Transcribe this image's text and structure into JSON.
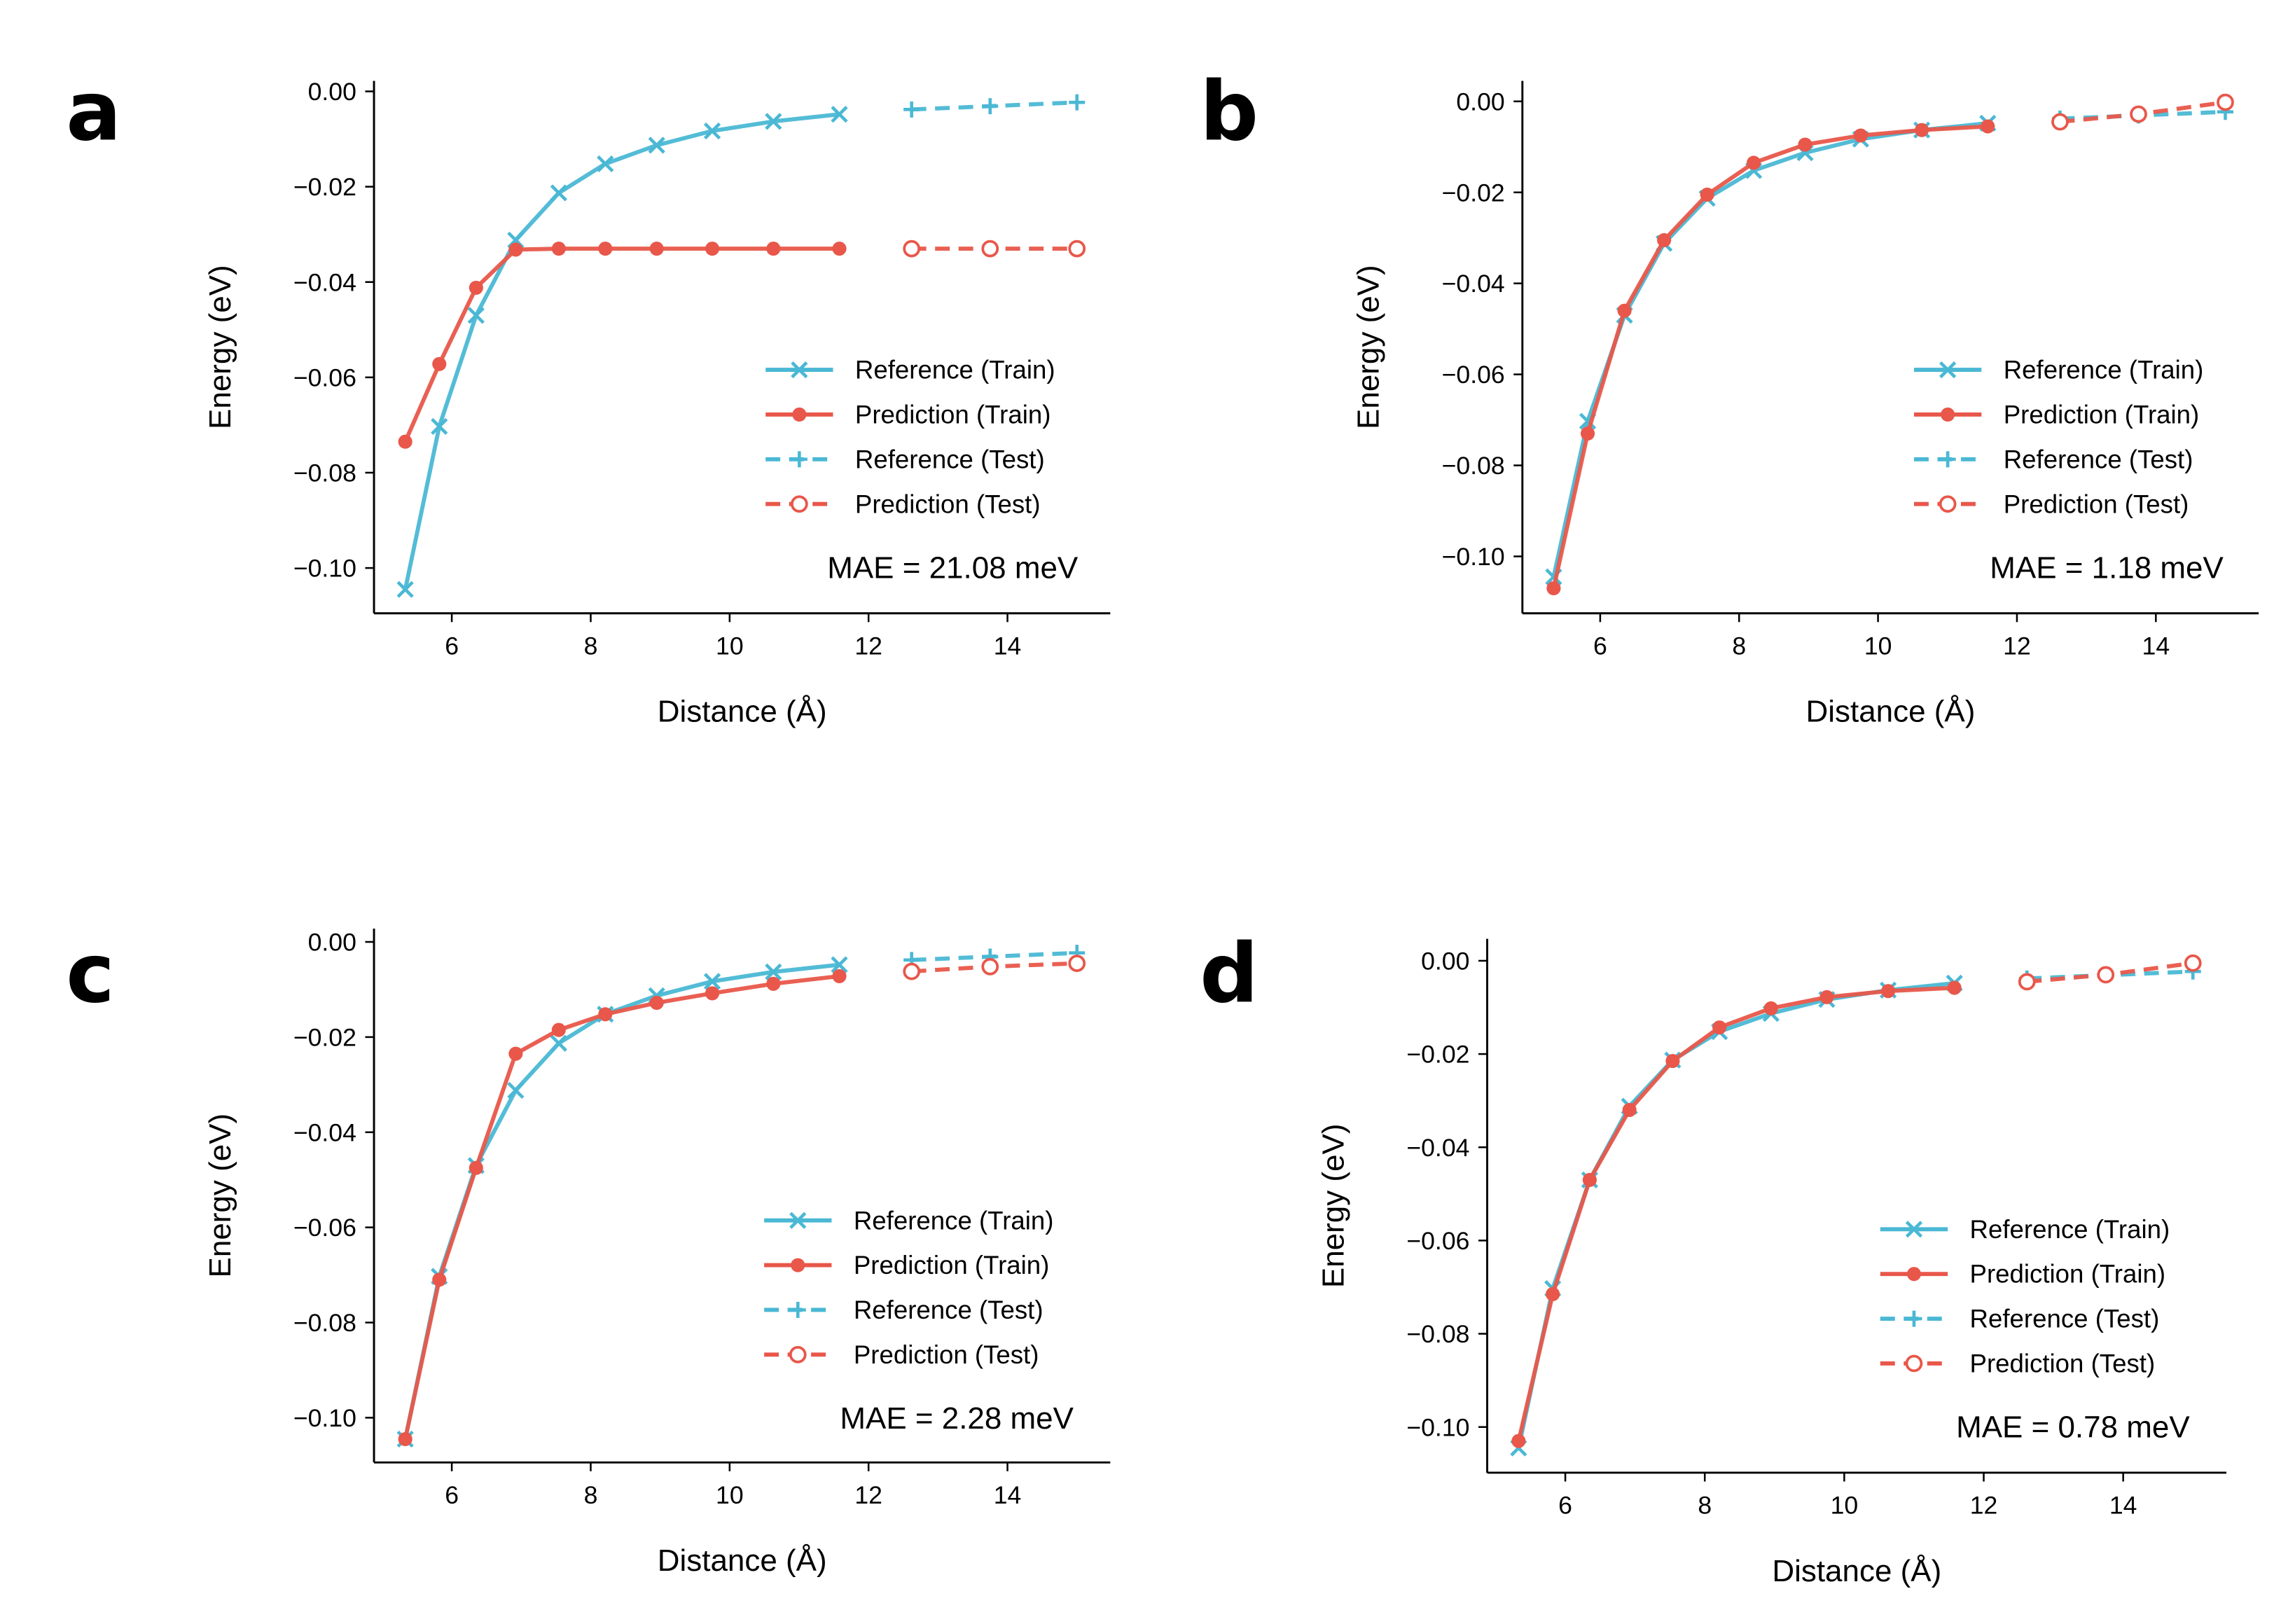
{
  "chart_data": [
    {
      "panel_label": "a",
      "type": "line",
      "xlabel": "Distance (Å)",
      "ylabel": "Energy (eV)",
      "xlim": [
        4.88,
        15.48
      ],
      "ylim": [
        -0.1095,
        0.0022
      ],
      "xticks": [
        6,
        8,
        10,
        12,
        14
      ],
      "yticks": [
        0.0,
        -0.02,
        -0.04,
        -0.06,
        -0.08,
        -0.1
      ],
      "annotation": "MAE = 21.08 meV",
      "legend_position": "lower-right",
      "series": [
        {
          "name": "Reference (Train)",
          "color": "#4ab8d4",
          "marker": "x",
          "dash": false,
          "x": [
            5.33,
            5.82,
            6.35,
            6.92,
            7.54,
            8.21,
            8.95,
            9.75,
            10.63,
            11.58
          ],
          "y": [
            -0.1045,
            -0.0703,
            -0.047,
            -0.0312,
            -0.0213,
            -0.0152,
            -0.0113,
            -0.0083,
            -0.0063,
            -0.0048
          ]
        },
        {
          "name": "Prediction (Train)",
          "color": "#e8574a",
          "marker": "o",
          "dash": false,
          "x": [
            5.33,
            5.82,
            6.35,
            6.92,
            7.54,
            8.21,
            8.95,
            9.75,
            10.63,
            11.58
          ],
          "y": [
            -0.0735,
            -0.0572,
            -0.0412,
            -0.0332,
            -0.033,
            -0.033,
            -0.033,
            -0.033,
            -0.033,
            -0.033
          ]
        },
        {
          "name": "Reference (Test)",
          "color": "#4ab8d4",
          "marker": "+",
          "dash": true,
          "x": [
            12.62,
            13.75,
            15.0
          ],
          "y": [
            -0.0038,
            -0.0031,
            -0.0023
          ]
        },
        {
          "name": "Prediction (Test)",
          "color": "#e8574a",
          "marker": "open-circle",
          "dash": true,
          "x": [
            12.62,
            13.75,
            15.0
          ],
          "y": [
            -0.033,
            -0.033,
            -0.033
          ]
        }
      ]
    },
    {
      "panel_label": "b",
      "type": "line",
      "xlabel": "Distance (Å)",
      "ylabel": "Energy (eV)",
      "xlim": [
        4.88,
        15.48
      ],
      "ylim": [
        -0.1125,
        0.0045
      ],
      "xticks": [
        6,
        8,
        10,
        12,
        14
      ],
      "yticks": [
        0.0,
        -0.02,
        -0.04,
        -0.06,
        -0.08,
        -0.1
      ],
      "annotation": "MAE = 1.18 meV",
      "legend_position": "lower-right",
      "series": [
        {
          "name": "Reference (Train)",
          "color": "#4ab8d4",
          "marker": "x",
          "dash": false,
          "x": [
            5.33,
            5.82,
            6.35,
            6.92,
            7.54,
            8.21,
            8.95,
            9.75,
            10.63,
            11.58
          ],
          "y": [
            -0.1045,
            -0.0703,
            -0.047,
            -0.0312,
            -0.0213,
            -0.0152,
            -0.0113,
            -0.0083,
            -0.0063,
            -0.0048
          ]
        },
        {
          "name": "Prediction (Train)",
          "color": "#e8574a",
          "marker": "o",
          "dash": false,
          "x": [
            5.33,
            5.82,
            6.35,
            6.92,
            7.54,
            8.21,
            8.95,
            9.75,
            10.63,
            11.58
          ],
          "y": [
            -0.107,
            -0.073,
            -0.046,
            -0.0305,
            -0.0205,
            -0.0135,
            -0.0095,
            -0.0075,
            -0.0063,
            -0.0055
          ]
        },
        {
          "name": "Reference (Test)",
          "color": "#4ab8d4",
          "marker": "+",
          "dash": true,
          "x": [
            12.62,
            13.75,
            15.0
          ],
          "y": [
            -0.0038,
            -0.0031,
            -0.0023
          ]
        },
        {
          "name": "Prediction (Test)",
          "color": "#e8574a",
          "marker": "open-circle",
          "dash": true,
          "x": [
            12.62,
            13.75,
            15.0
          ],
          "y": [
            -0.0045,
            -0.0028,
            -0.0002
          ]
        }
      ]
    },
    {
      "panel_label": "c",
      "type": "line",
      "xlabel": "Distance (Å)",
      "ylabel": "Energy (eV)",
      "xlim": [
        4.88,
        15.48
      ],
      "ylim": [
        -0.1094,
        0.0028
      ],
      "xticks": [
        6,
        8,
        10,
        12,
        14
      ],
      "yticks": [
        0.0,
        -0.02,
        -0.04,
        -0.06,
        -0.08,
        -0.1
      ],
      "annotation": "MAE = 2.28 meV",
      "legend_position": "lower-right",
      "series": [
        {
          "name": "Reference (Train)",
          "color": "#4ab8d4",
          "marker": "x",
          "dash": false,
          "x": [
            5.33,
            5.82,
            6.35,
            6.92,
            7.54,
            8.21,
            8.95,
            9.75,
            10.63,
            11.58
          ],
          "y": [
            -0.1045,
            -0.0703,
            -0.047,
            -0.0312,
            -0.0213,
            -0.0152,
            -0.0113,
            -0.0083,
            -0.0063,
            -0.0048
          ]
        },
        {
          "name": "Prediction (Train)",
          "color": "#e8574a",
          "marker": "o",
          "dash": false,
          "x": [
            5.33,
            5.82,
            6.35,
            6.92,
            7.54,
            8.21,
            8.95,
            9.75,
            10.63,
            11.58
          ],
          "y": [
            -0.1045,
            -0.071,
            -0.0475,
            -0.0235,
            -0.0185,
            -0.0152,
            -0.0128,
            -0.0108,
            -0.0088,
            -0.0072
          ]
        },
        {
          "name": "Reference (Test)",
          "color": "#4ab8d4",
          "marker": "+",
          "dash": true,
          "x": [
            12.62,
            13.75,
            15.0
          ],
          "y": [
            -0.0038,
            -0.0031,
            -0.0023
          ]
        },
        {
          "name": "Prediction (Test)",
          "color": "#e8574a",
          "marker": "open-circle",
          "dash": true,
          "x": [
            12.62,
            13.75,
            15.0
          ],
          "y": [
            -0.0062,
            -0.0052,
            -0.0045
          ]
        }
      ]
    },
    {
      "panel_label": "d",
      "type": "line",
      "xlabel": "Distance (Å)",
      "ylabel": "Energy (eV)",
      "xlim": [
        4.88,
        15.48
      ],
      "ylim": [
        -0.1098,
        0.0047
      ],
      "xticks": [
        6,
        8,
        10,
        12,
        14
      ],
      "yticks": [
        0.0,
        -0.02,
        -0.04,
        -0.06,
        -0.08,
        -0.1
      ],
      "annotation": "MAE = 0.78 meV",
      "legend_position": "lower-right",
      "series": [
        {
          "name": "Reference (Train)",
          "color": "#4ab8d4",
          "marker": "x",
          "dash": false,
          "x": [
            5.33,
            5.82,
            6.35,
            6.92,
            7.54,
            8.21,
            8.95,
            9.75,
            10.63,
            11.58
          ],
          "y": [
            -0.1045,
            -0.0703,
            -0.047,
            -0.0312,
            -0.0213,
            -0.0152,
            -0.0113,
            -0.0083,
            -0.0063,
            -0.0048
          ]
        },
        {
          "name": "Prediction (Train)",
          "color": "#e8574a",
          "marker": "o",
          "dash": false,
          "x": [
            5.33,
            5.82,
            6.35,
            6.92,
            7.54,
            8.21,
            8.95,
            9.75,
            10.63,
            11.58
          ],
          "y": [
            -0.103,
            -0.0715,
            -0.047,
            -0.032,
            -0.0215,
            -0.0143,
            -0.0102,
            -0.0078,
            -0.0065,
            -0.0058
          ]
        },
        {
          "name": "Reference (Test)",
          "color": "#4ab8d4",
          "marker": "+",
          "dash": true,
          "x": [
            12.62,
            13.75,
            15.0
          ],
          "y": [
            -0.0038,
            -0.0031,
            -0.0023
          ]
        },
        {
          "name": "Prediction (Test)",
          "color": "#e8574a",
          "marker": "open-circle",
          "dash": true,
          "x": [
            12.62,
            13.75,
            15.0
          ],
          "y": [
            -0.0045,
            -0.003,
            -0.0005
          ]
        }
      ]
    }
  ]
}
